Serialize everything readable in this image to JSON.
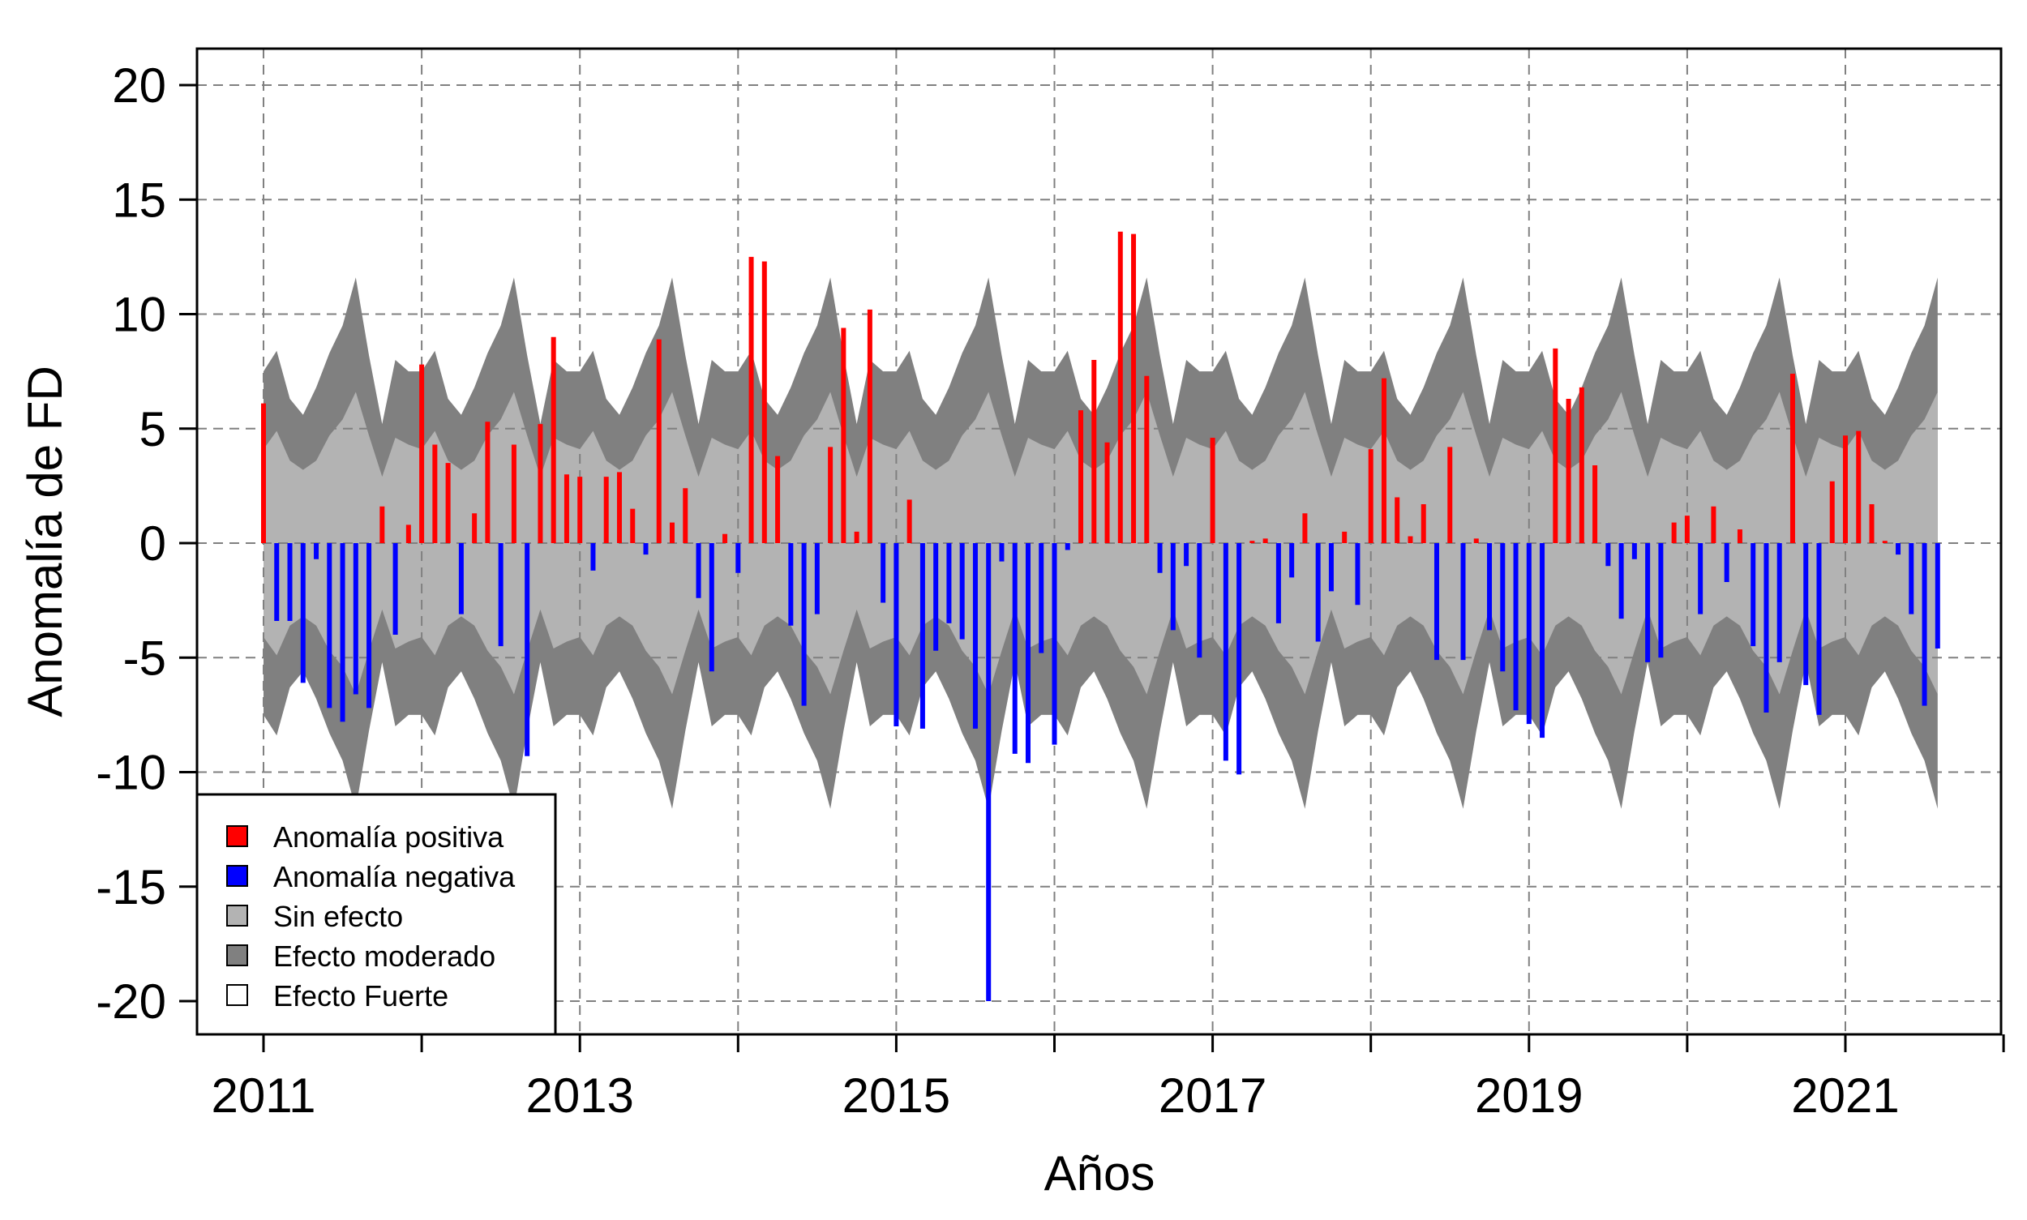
{
  "chart_data": {
    "type": "bar",
    "xlabel": "Años",
    "ylabel": "Anomalía de FD",
    "xlim": [
      2010.6,
      2021.6
    ],
    "ylim": [
      -21.5,
      21.5
    ],
    "x_ticks": [
      2011,
      2013,
      2015,
      2017,
      2019,
      2021
    ],
    "x_tick_labels": [
      "2011",
      "2013",
      "2015",
      "2017",
      "2019",
      "2021"
    ],
    "y_ticks": [
      20,
      15,
      10,
      5,
      0,
      -5,
      -10,
      -15,
      -20
    ],
    "y_tick_labels": [
      "20",
      "15",
      "10",
      "5",
      "0",
      "-5",
      "-10",
      "-15",
      "-20"
    ],
    "grid": true,
    "legend_position": "bottom-left",
    "legend": [
      {
        "label": "Anomalía positiva",
        "color": "#ff0000"
      },
      {
        "label": "Anomalía negativa",
        "color": "#0000ff"
      },
      {
        "label": "Sin efecto",
        "color": "#b3b3b3"
      },
      {
        "label": "Efecto moderado",
        "color": "#808080"
      },
      {
        "label": "Efecto Fuerte",
        "color": "#ffffff"
      }
    ],
    "colors": {
      "positive": "#ff0000",
      "negative": "#0000ff",
      "no_effect": "#b3b3b3",
      "moderate": "#808080",
      "grid": "#808080"
    },
    "start_year": 2011,
    "start_month": 1,
    "monthly_anomaly": [
      6.1,
      -3.4,
      -3.4,
      -6.1,
      -0.7,
      -7.2,
      -7.8,
      -6.6,
      -7.2,
      1.6,
      -4.0,
      0.8,
      7.8,
      4.3,
      3.5,
      -3.1,
      1.3,
      5.3,
      -4.5,
      4.3,
      -9.3,
      5.2,
      9.0,
      3.0,
      2.9,
      -1.2,
      2.9,
      3.1,
      1.5,
      -0.5,
      8.9,
      0.9,
      2.4,
      -2.4,
      -5.6,
      0.4,
      -1.3,
      12.5,
      12.3,
      3.8,
      -3.6,
      -7.1,
      -3.1,
      4.2,
      9.4,
      0.5,
      10.2,
      -2.6,
      -8.0,
      1.9,
      -8.1,
      -4.7,
      -3.5,
      -4.2,
      -8.1,
      -20.0,
      -0.8,
      -9.2,
      -9.6,
      -4.8,
      -8.8,
      -0.3,
      5.8,
      8.0,
      4.4,
      13.6,
      13.5,
      7.3,
      -1.3,
      -3.8,
      -1.0,
      -5.0,
      4.6,
      -9.5,
      -10.1,
      0.1,
      0.2,
      -3.5,
      -1.5,
      1.3,
      -4.3,
      -2.1,
      0.5,
      -2.7,
      4.1,
      7.2,
      2.0,
      0.3,
      1.7,
      -5.1,
      4.2,
      -5.1,
      0.2,
      -3.8,
      -5.6,
      -7.3,
      -7.9,
      -8.5,
      8.5,
      6.3,
      6.8,
      3.4,
      -1.0,
      -3.3,
      -0.7,
      -5.2,
      -5.0,
      0.9,
      1.2,
      -3.1,
      1.6,
      -1.7,
      0.6,
      -4.5,
      -7.4,
      -5.2,
      7.4,
      -6.2,
      -7.5,
      2.7,
      4.7,
      4.9,
      1.7,
      0.1,
      -0.5,
      -3.1,
      -7.1,
      -4.6
    ],
    "band_no_effect_by_month": [
      4.1,
      4.9,
      3.6,
      3.2,
      3.6,
      4.7,
      5.4,
      6.6,
      4.7,
      2.9,
      4.6,
      4.3
    ],
    "band_moderate_by_month": [
      7.5,
      8.4,
      6.3,
      5.6,
      6.8,
      8.3,
      9.5,
      11.6,
      8.2,
      5.2,
      8.0,
      7.5
    ]
  }
}
